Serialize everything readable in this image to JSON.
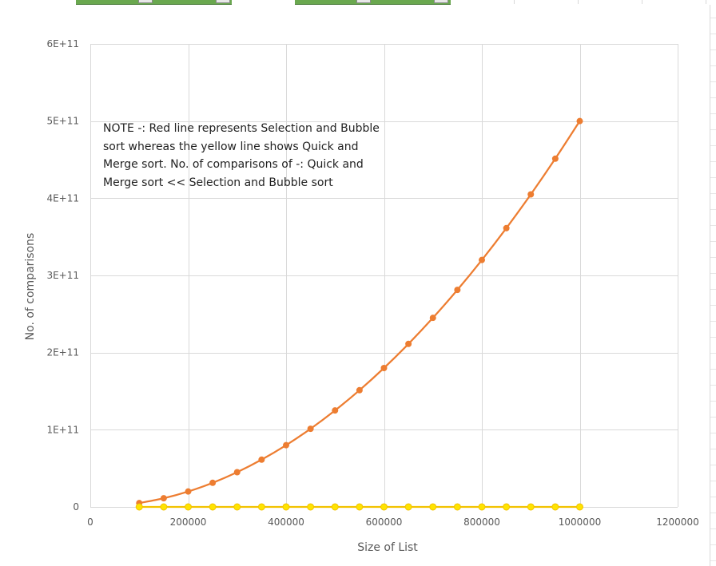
{
  "note": "NOTE -: Red line represents Selection and Bubble sort whereas the yellow line shows Quick and Merge sort. No. of comparisons of -: Quick and Merge sort << Selection and Bubble sort",
  "colors": {
    "selection_bubble": "#ed7d31",
    "quick_merge_line": "#f2c200",
    "quick_merge_marker": "#ffe400",
    "gridline": "#d9d9d9",
    "axis_text": "#595959",
    "sheet_filter_header": "#6aa84f"
  },
  "chart_data": {
    "type": "line",
    "title": "",
    "xlabel": "Size of List",
    "ylabel": "No. of comparisons",
    "xlim": [
      0,
      1200000
    ],
    "ylim": [
      0,
      600000000000
    ],
    "x_ticks": [
      0,
      200000,
      400000,
      600000,
      800000,
      1000000,
      1200000
    ],
    "x_tick_labels": [
      "0",
      "200000",
      "400000",
      "600000",
      "800000",
      "1000000",
      "1200000"
    ],
    "y_ticks": [
      0,
      100000000000,
      200000000000,
      300000000000,
      400000000000,
      500000000000,
      600000000000
    ],
    "y_tick_labels": [
      "0",
      "1E+11",
      "2E+11",
      "3E+11",
      "4E+11",
      "5E+11",
      "6E+11"
    ],
    "grid": true,
    "legend": "none",
    "x": [
      100000,
      150000,
      200000,
      250000,
      300000,
      350000,
      400000,
      450000,
      500000,
      550000,
      600000,
      650000,
      700000,
      750000,
      800000,
      850000,
      900000,
      950000,
      1000000
    ],
    "series": [
      {
        "color": "#ed7d31",
        "values": [
          5000000000,
          11250000000,
          20000000000,
          31250000000,
          45000000000,
          61250000000,
          80000000000,
          101250000000,
          125000000000,
          151250000000,
          180000000000,
          211250000000,
          245000000000,
          281250000000,
          320000000000,
          361250000000,
          405000000000,
          451250000000,
          500000000000
        ]
      },
      {
        "color": "#ffe400",
        "values": [
          1660000,
          2580000,
          3530000,
          4480000,
          5460000,
          6440000,
          7440000,
          8460000,
          9470000,
          10500000,
          11540000,
          12570000,
          13620000,
          14670000,
          15730000,
          16800000,
          17870000,
          18940000,
          19930000
        ]
      }
    ]
  }
}
